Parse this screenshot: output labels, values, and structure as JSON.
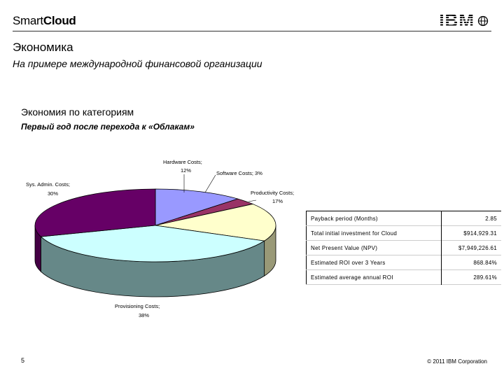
{
  "header": {
    "brand_light": "Smart",
    "brand_bold": "Cloud",
    "logo_text": "IBM"
  },
  "slide": {
    "title": "Экономика",
    "subtitle": "На примере международной финансовой организации",
    "section_title": "Экономия по категориям",
    "section_subtitle": "Первый год после перехода к «Облакам»"
  },
  "chart_data": {
    "type": "pie",
    "title": "",
    "slices": [
      {
        "label": "Hardware Costs;",
        "value_label": "12%",
        "value": 12,
        "color": "#9999ff",
        "side": "#6666aa"
      },
      {
        "label": "Software Costs; 3%",
        "value_label": "",
        "value": 3,
        "color": "#993366",
        "side": "#662244"
      },
      {
        "label": "Productivity Costs;",
        "value_label": "17%",
        "value": 17,
        "color": "#ffffcc",
        "side": "#999977"
      },
      {
        "label": "Provisioning Costs;",
        "value_label": "38%",
        "value": 38,
        "color": "#ccffff",
        "side": "#668888"
      },
      {
        "label": "Sys. Admin. Costs;",
        "value_label": "30%",
        "value": 30,
        "color": "#660066",
        "side": "#440044"
      }
    ]
  },
  "metrics": [
    {
      "label": "Payback period (Months)",
      "value": "2.85"
    },
    {
      "label": "Total initial investment for Cloud",
      "value": "$914,929.31"
    },
    {
      "label": "Net Present Value (NPV)",
      "value": "$7,949,226.61"
    },
    {
      "label": "Estimated ROI over 3 Years",
      "value": "868.84%"
    },
    {
      "label": "Estimated average annual ROI",
      "value": "289.61%"
    }
  ],
  "footer": {
    "page_number": "5",
    "copyright": "© 2011 IBM Corporation"
  }
}
